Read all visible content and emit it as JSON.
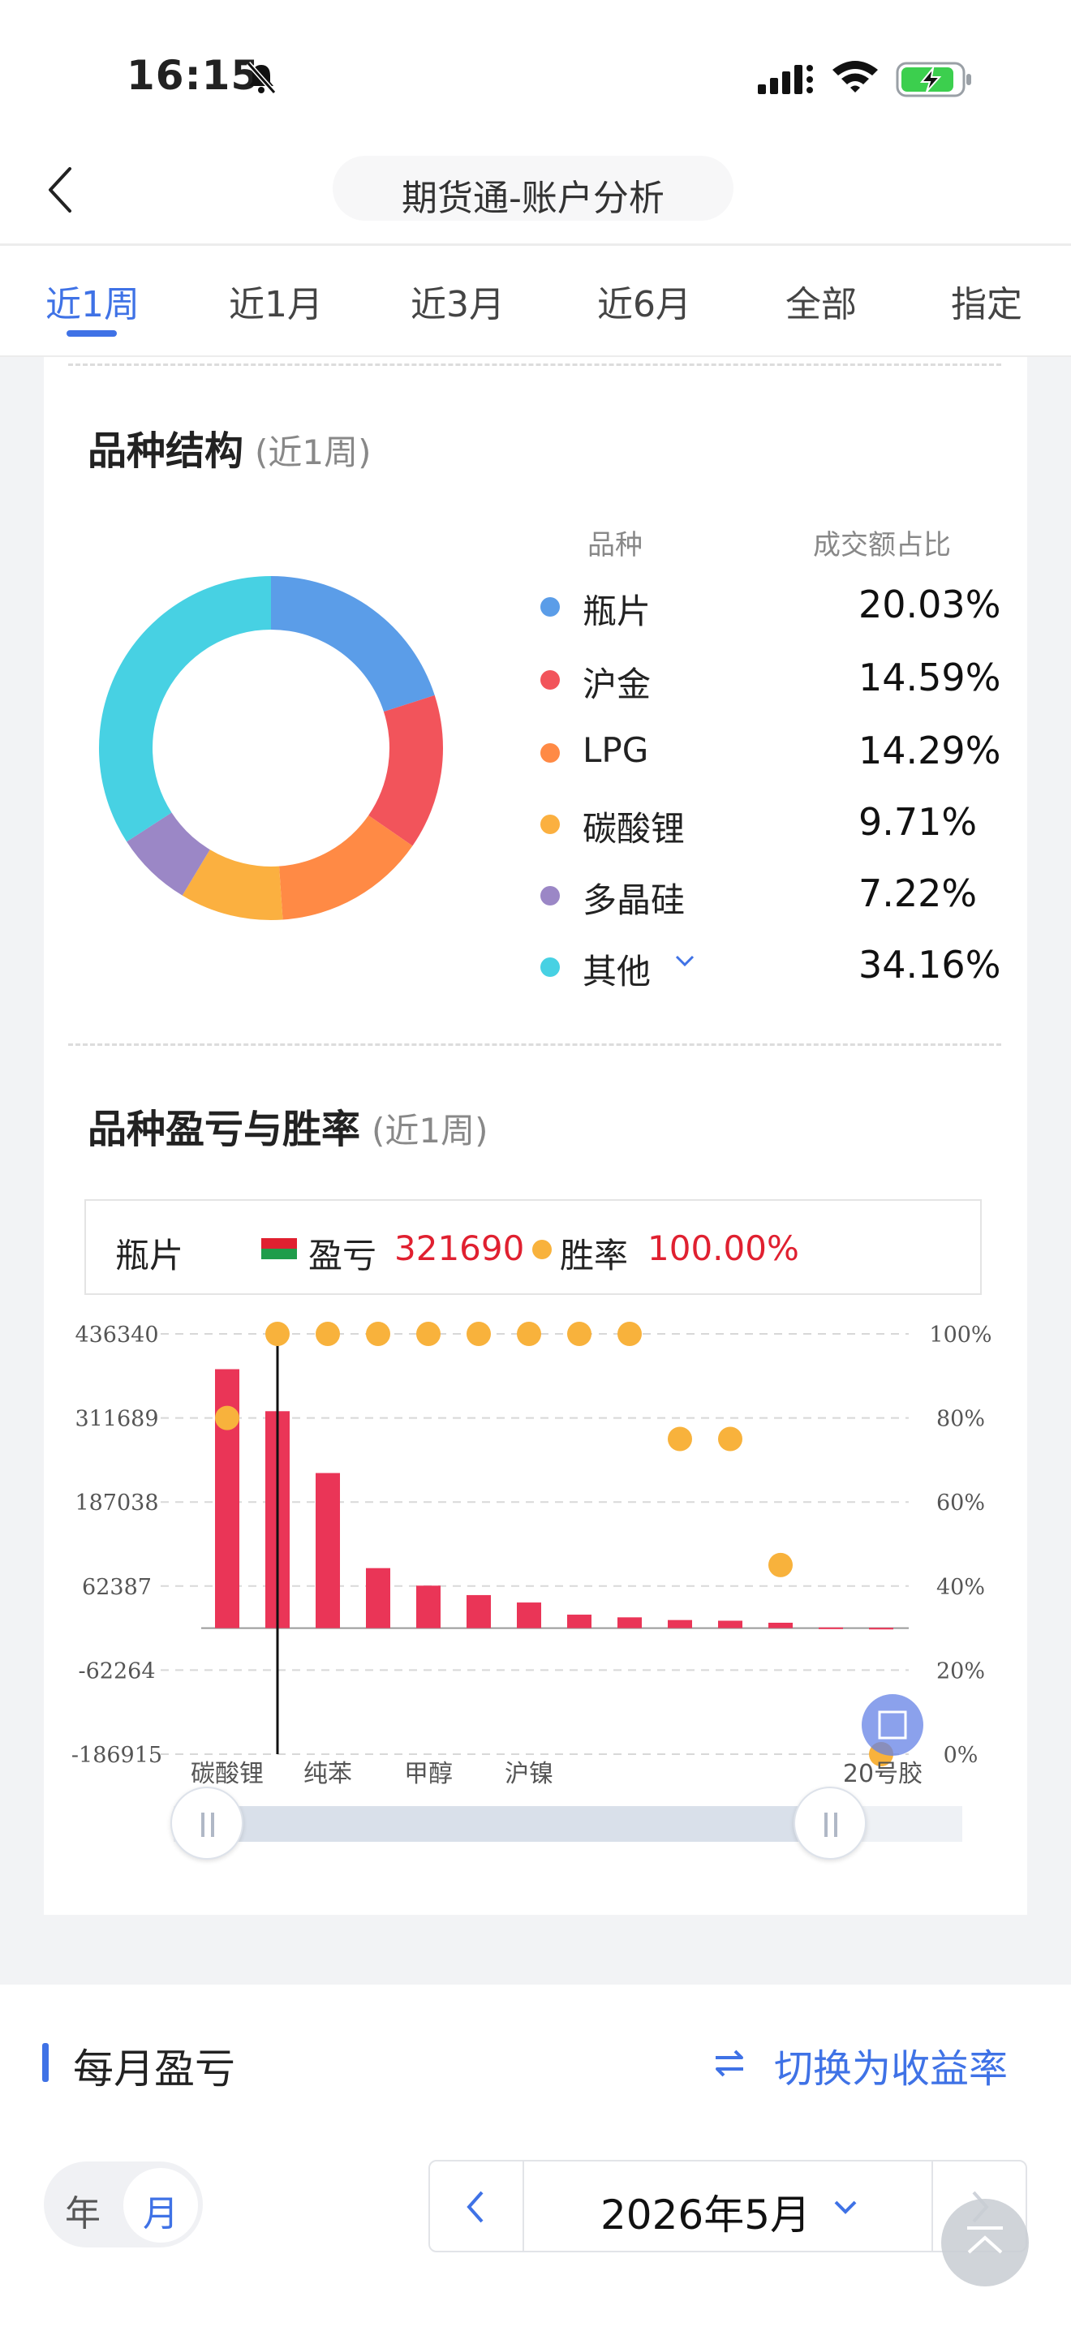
{
  "status_bar": {
    "time": "16:15"
  },
  "header": {
    "title": "期货通-账户分析"
  },
  "tabs": [
    {
      "label": "近1周",
      "active": true
    },
    {
      "label": "近1月"
    },
    {
      "label": "近3月"
    },
    {
      "label": "近6月"
    },
    {
      "label": "全部"
    },
    {
      "label": "指定"
    }
  ],
  "structure": {
    "title": "品种结构",
    "period": "(近1周)",
    "col_name": "品种",
    "col_ratio": "成交额占比",
    "items": [
      {
        "name": "瓶片",
        "ratio": "20.03%",
        "color": "#5b9de8"
      },
      {
        "name": "沪金",
        "ratio": "14.59%",
        "color": "#f2545b"
      },
      {
        "name": "LPG",
        "ratio": "14.29%",
        "color": "#ff8a45"
      },
      {
        "name": "碳酸锂",
        "ratio": "9.71%",
        "color": "#fbb040"
      },
      {
        "name": "多晶硅",
        "ratio": "7.22%",
        "color": "#9b87c6"
      },
      {
        "name": "其他",
        "ratio": "34.16%",
        "color": "#47d1e3"
      }
    ]
  },
  "pnl": {
    "title": "品种盈亏与胜率",
    "period": "(近1周)",
    "selected": {
      "name": "瓶片",
      "pnl_label": "盈亏",
      "pnl_value": "321690",
      "win_label": "胜率",
      "win_value": "100.00%"
    }
  },
  "chart_data": {
    "type": "bar",
    "y_left_ticks": [
      "436340",
      "311689",
      "187038",
      "62387",
      "-62264",
      "-186915"
    ],
    "y_left_range": [
      -186915,
      436340
    ],
    "y_right_ticks": [
      "100%",
      "80%",
      "60%",
      "40%",
      "20%",
      "0%"
    ],
    "y_right_range": [
      0,
      100
    ],
    "x_tick_labels": [
      "碳酸锂",
      "纯苯",
      "甲醇",
      "沪镍",
      "20号胶"
    ],
    "series": [
      {
        "kind": "bar",
        "color": "#ea3557",
        "values": [
          384000,
          321690,
          230000,
          89000,
          63000,
          49000,
          38000,
          20000,
          16000,
          12000,
          11000,
          8000,
          1000,
          500
        ]
      },
      {
        "kind": "dot",
        "color": "#f8b23c",
        "values": [
          80,
          100,
          100,
          100,
          100,
          100,
          100,
          100,
          100,
          75,
          75,
          45,
          null,
          0
        ]
      }
    ],
    "grid": true
  },
  "monthly": {
    "title": "每月盈亏",
    "switch_label": "切换为收益率",
    "seg_year": "年",
    "seg_month": "月",
    "date": "2026年5月"
  }
}
